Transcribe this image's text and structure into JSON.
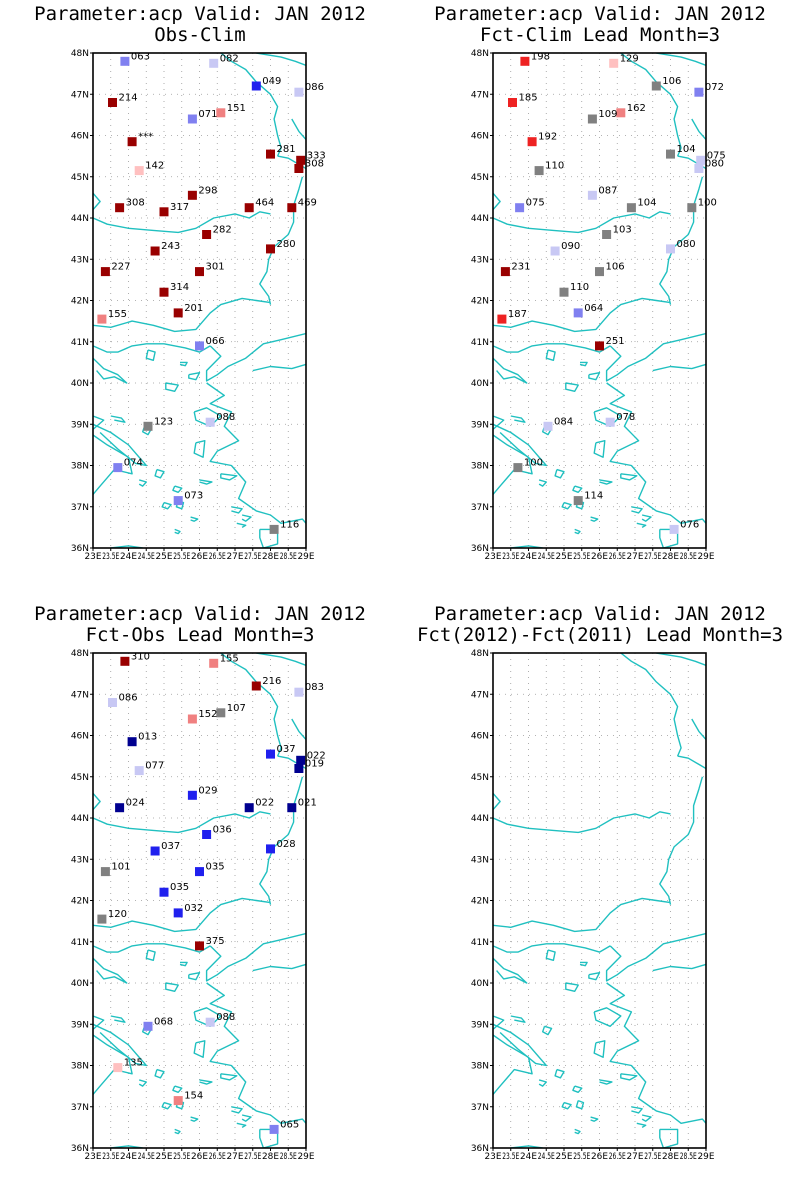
{
  "region": {
    "lon_min": 23,
    "lon_max": 29,
    "lat_min": 36,
    "lat_max": 48,
    "lat_labels": [
      "36N",
      "37N",
      "38N",
      "39N",
      "40N",
      "41N",
      "42N",
      "43N",
      "44N",
      "45N",
      "46N",
      "47N",
      "48N"
    ],
    "lon_labels": [
      "23E",
      "23.5E",
      "24E",
      "24.5E",
      "25E",
      "25.5E",
      "26E",
      "26.5E",
      "27E",
      "27.5E",
      "28E",
      "28.5E",
      "29E"
    ]
  },
  "colors": {
    "coast": "#20c0c0",
    "dark_red": "#990000",
    "red": "#ee2222",
    "salmon": "#f08080",
    "pink": "#ffc0c0",
    "gray": "#808080",
    "lavender": "#c8c8f4",
    "light_blue": "#8080f0",
    "blue": "#2020ee",
    "navy": "#000090"
  },
  "panels": [
    {
      "title1": "Parameter:acp Valid: JAN 2012",
      "title2": "Obs-Clim",
      "stations": [
        {
          "lon": 23.9,
          "lat": 47.8,
          "label": "063",
          "color": "light_blue"
        },
        {
          "lon": 26.4,
          "lat": 47.75,
          "label": "082",
          "color": "lavender"
        },
        {
          "lon": 27.6,
          "lat": 47.2,
          "label": "049",
          "color": "blue"
        },
        {
          "lon": 28.8,
          "lat": 47.05,
          "label": "086",
          "color": "lavender"
        },
        {
          "lon": 23.55,
          "lat": 46.8,
          "label": "214",
          "color": "dark_red"
        },
        {
          "lon": 25.8,
          "lat": 46.4,
          "label": "071",
          "color": "light_blue"
        },
        {
          "lon": 26.6,
          "lat": 46.55,
          "label": "151",
          "color": "salmon"
        },
        {
          "lon": 24.1,
          "lat": 45.85,
          "label": "***",
          "color": "dark_red"
        },
        {
          "lon": 28.0,
          "lat": 45.55,
          "label": "281",
          "color": "dark_red"
        },
        {
          "lon": 28.85,
          "lat": 45.4,
          "label": "333",
          "color": "dark_red"
        },
        {
          "lon": 28.8,
          "lat": 45.2,
          "label": "308",
          "color": "dark_red"
        },
        {
          "lon": 24.3,
          "lat": 45.15,
          "label": "142",
          "color": "pink"
        },
        {
          "lon": 25.8,
          "lat": 44.55,
          "label": "298",
          "color": "dark_red"
        },
        {
          "lon": 23.75,
          "lat": 44.25,
          "label": "308",
          "color": "dark_red"
        },
        {
          "lon": 25.0,
          "lat": 44.15,
          "label": "317",
          "color": "dark_red"
        },
        {
          "lon": 27.4,
          "lat": 44.25,
          "label": "464",
          "color": "dark_red"
        },
        {
          "lon": 28.6,
          "lat": 44.25,
          "label": "469",
          "color": "dark_red"
        },
        {
          "lon": 26.2,
          "lat": 43.6,
          "label": "282",
          "color": "dark_red"
        },
        {
          "lon": 24.75,
          "lat": 43.2,
          "label": "243",
          "color": "dark_red"
        },
        {
          "lon": 28.0,
          "lat": 43.25,
          "label": "280",
          "color": "dark_red"
        },
        {
          "lon": 23.35,
          "lat": 42.7,
          "label": "227",
          "color": "dark_red"
        },
        {
          "lon": 26.0,
          "lat": 42.7,
          "label": "301",
          "color": "dark_red"
        },
        {
          "lon": 25.0,
          "lat": 42.2,
          "label": "314",
          "color": "dark_red"
        },
        {
          "lon": 25.4,
          "lat": 41.7,
          "label": "201",
          "color": "dark_red"
        },
        {
          "lon": 23.25,
          "lat": 41.55,
          "label": "155",
          "color": "salmon"
        },
        {
          "lon": 26.0,
          "lat": 40.9,
          "label": "066",
          "color": "light_blue"
        },
        {
          "lon": 24.55,
          "lat": 38.95,
          "label": "123",
          "color": "gray"
        },
        {
          "lon": 26.3,
          "lat": 39.05,
          "label": "088",
          "color": "lavender"
        },
        {
          "lon": 23.7,
          "lat": 37.95,
          "label": "074",
          "color": "light_blue"
        },
        {
          "lon": 25.4,
          "lat": 37.15,
          "label": "073",
          "color": "light_blue"
        },
        {
          "lon": 28.1,
          "lat": 36.45,
          "label": "116",
          "color": "gray"
        }
      ]
    },
    {
      "title1": "Parameter:acp Valid: JAN 2012",
      "title2": "Fct-Clim Lead Month=3",
      "stations": [
        {
          "lon": 23.9,
          "lat": 47.8,
          "label": "198",
          "color": "red"
        },
        {
          "lon": 26.4,
          "lat": 47.75,
          "label": "129",
          "color": "pink"
        },
        {
          "lon": 27.6,
          "lat": 47.2,
          "label": "106",
          "color": "gray"
        },
        {
          "lon": 28.8,
          "lat": 47.05,
          "label": "072",
          "color": "light_blue"
        },
        {
          "lon": 23.55,
          "lat": 46.8,
          "label": "185",
          "color": "red"
        },
        {
          "lon": 25.8,
          "lat": 46.4,
          "label": "109",
          "color": "gray"
        },
        {
          "lon": 26.6,
          "lat": 46.55,
          "label": "162",
          "color": "salmon"
        },
        {
          "lon": 24.1,
          "lat": 45.85,
          "label": "192",
          "color": "red"
        },
        {
          "lon": 28.0,
          "lat": 45.55,
          "label": "104",
          "color": "gray"
        },
        {
          "lon": 28.85,
          "lat": 45.4,
          "label": "075",
          "color": "lavender"
        },
        {
          "lon": 28.8,
          "lat": 45.2,
          "label": "080",
          "color": "lavender"
        },
        {
          "lon": 24.3,
          "lat": 45.15,
          "label": "110",
          "color": "gray"
        },
        {
          "lon": 25.8,
          "lat": 44.55,
          "label": "087",
          "color": "lavender"
        },
        {
          "lon": 23.75,
          "lat": 44.25,
          "label": "075",
          "color": "light_blue"
        },
        {
          "lon": 26.9,
          "lat": 44.25,
          "label": "104",
          "color": "gray"
        },
        {
          "lon": 28.6,
          "lat": 44.25,
          "label": "100",
          "color": "gray"
        },
        {
          "lon": 26.2,
          "lat": 43.6,
          "label": "103",
          "color": "gray"
        },
        {
          "lon": 24.75,
          "lat": 43.2,
          "label": "090",
          "color": "lavender"
        },
        {
          "lon": 28.0,
          "lat": 43.25,
          "label": "080",
          "color": "lavender"
        },
        {
          "lon": 23.35,
          "lat": 42.7,
          "label": "231",
          "color": "dark_red"
        },
        {
          "lon": 26.0,
          "lat": 42.7,
          "label": "106",
          "color": "gray"
        },
        {
          "lon": 25.0,
          "lat": 42.2,
          "label": "110",
          "color": "gray"
        },
        {
          "lon": 25.4,
          "lat": 41.7,
          "label": "064",
          "color": "light_blue"
        },
        {
          "lon": 23.25,
          "lat": 41.55,
          "label": "187",
          "color": "red"
        },
        {
          "lon": 26.0,
          "lat": 40.9,
          "label": "251",
          "color": "dark_red"
        },
        {
          "lon": 24.55,
          "lat": 38.95,
          "label": "084",
          "color": "lavender"
        },
        {
          "lon": 26.3,
          "lat": 39.05,
          "label": "078",
          "color": "lavender"
        },
        {
          "lon": 23.7,
          "lat": 37.95,
          "label": "100",
          "color": "gray"
        },
        {
          "lon": 25.4,
          "lat": 37.15,
          "label": "114",
          "color": "gray"
        },
        {
          "lon": 28.1,
          "lat": 36.45,
          "label": "076",
          "color": "lavender"
        }
      ]
    },
    {
      "title1": "Parameter:acp Valid: JAN 2012",
      "title2": "Fct-Obs Lead Month=3",
      "stations": [
        {
          "lon": 23.9,
          "lat": 47.8,
          "label": "310",
          "color": "dark_red"
        },
        {
          "lon": 26.4,
          "lat": 47.75,
          "label": "155",
          "color": "salmon"
        },
        {
          "lon": 27.6,
          "lat": 47.2,
          "label": "216",
          "color": "dark_red"
        },
        {
          "lon": 28.8,
          "lat": 47.05,
          "label": "083",
          "color": "lavender"
        },
        {
          "lon": 23.55,
          "lat": 46.8,
          "label": "086",
          "color": "lavender"
        },
        {
          "lon": 25.8,
          "lat": 46.4,
          "label": "152",
          "color": "salmon"
        },
        {
          "lon": 26.6,
          "lat": 46.55,
          "label": "107",
          "color": "gray"
        },
        {
          "lon": 24.1,
          "lat": 45.85,
          "label": "013",
          "color": "navy"
        },
        {
          "lon": 28.0,
          "lat": 45.55,
          "label": "037",
          "color": "blue"
        },
        {
          "lon": 28.85,
          "lat": 45.4,
          "label": "022",
          "color": "navy"
        },
        {
          "lon": 28.8,
          "lat": 45.2,
          "label": "019",
          "color": "navy"
        },
        {
          "lon": 24.3,
          "lat": 45.15,
          "label": "077",
          "color": "lavender"
        },
        {
          "lon": 25.8,
          "lat": 44.55,
          "label": "029",
          "color": "blue"
        },
        {
          "lon": 23.75,
          "lat": 44.25,
          "label": "024",
          "color": "navy"
        },
        {
          "lon": 27.4,
          "lat": 44.25,
          "label": "022",
          "color": "navy"
        },
        {
          "lon": 28.6,
          "lat": 44.25,
          "label": "021",
          "color": "navy"
        },
        {
          "lon": 26.2,
          "lat": 43.6,
          "label": "036",
          "color": "blue"
        },
        {
          "lon": 24.75,
          "lat": 43.2,
          "label": "037",
          "color": "blue"
        },
        {
          "lon": 28.0,
          "lat": 43.25,
          "label": "028",
          "color": "blue"
        },
        {
          "lon": 23.35,
          "lat": 42.7,
          "label": "101",
          "color": "gray"
        },
        {
          "lon": 26.0,
          "lat": 42.7,
          "label": "035",
          "color": "blue"
        },
        {
          "lon": 25.0,
          "lat": 42.2,
          "label": "035",
          "color": "blue"
        },
        {
          "lon": 25.4,
          "lat": 41.7,
          "label": "032",
          "color": "blue"
        },
        {
          "lon": 23.25,
          "lat": 41.55,
          "label": "120",
          "color": "gray"
        },
        {
          "lon": 26.0,
          "lat": 40.9,
          "label": "375",
          "color": "dark_red"
        },
        {
          "lon": 24.55,
          "lat": 38.95,
          "label": "068",
          "color": "light_blue"
        },
        {
          "lon": 26.3,
          "lat": 39.05,
          "label": "088",
          "color": "lavender"
        },
        {
          "lon": 23.7,
          "lat": 37.95,
          "label": "135",
          "color": "pink"
        },
        {
          "lon": 25.4,
          "lat": 37.15,
          "label": "154",
          "color": "salmon"
        },
        {
          "lon": 28.1,
          "lat": 36.45,
          "label": "065",
          "color": "light_blue"
        }
      ]
    },
    {
      "title1": "Parameter:acp Valid: JAN 2012",
      "title2": "Fct(2012)-Fct(2011) Lead Month=3",
      "stations": []
    }
  ]
}
